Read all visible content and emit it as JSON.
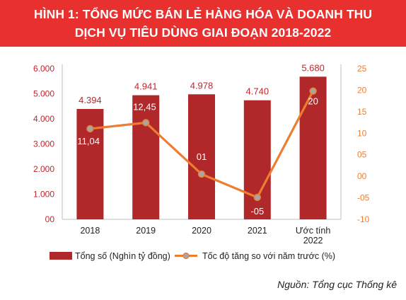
{
  "title": {
    "line1": "HÌNH 1: TỔNG MỨC BÁN LẺ HÀNG HÓA VÀ DOANH THU",
    "line2": "DỊCH VỤ TIÊU DÙNG GIAI ĐOẠN 2018-2022"
  },
  "source": "Nguồn: Tổng cục Thống kê",
  "colors": {
    "banner": "#e8302f",
    "bar": "#b1282a",
    "line": "#ed7d31",
    "marker": "#a6a6a6",
    "left_axis_text": "#c0262c",
    "right_axis_text": "#ed7d31"
  },
  "chart_data": {
    "type": "bar+line",
    "categories": [
      "2018",
      "2019",
      "2020",
      "2021",
      "Ước tính\n2022"
    ],
    "y_left": {
      "ticks": [
        "6.000",
        "5.000",
        "4.000",
        "3.000",
        "2.000",
        "1.000",
        "00"
      ],
      "tick_values": [
        6000,
        5000,
        4000,
        3000,
        2000,
        1000,
        0
      ],
      "range": [
        0,
        6000
      ]
    },
    "y_right": {
      "ticks": [
        "25",
        "20",
        "15",
        "10",
        "05",
        "00",
        "-05",
        "-10"
      ],
      "tick_values": [
        25,
        20,
        15,
        10,
        5,
        0,
        -5,
        -10
      ],
      "range": [
        -10,
        25
      ]
    },
    "series": [
      {
        "name": "Tổng số (Nghìn tỷ đồng)",
        "type": "bar",
        "axis": "left",
        "values": [
          4394,
          4941,
          4978,
          4740,
          5680
        ],
        "labels": [
          "4.394",
          "4.941",
          "4.978",
          "4.740",
          "5.680"
        ]
      },
      {
        "name": "Tốc độ tăng so với năm trước (%)",
        "type": "line",
        "axis": "right",
        "values": [
          11.04,
          12.45,
          0.5,
          -4.9,
          19.8
        ],
        "labels": [
          "11,04",
          "12,45",
          "01",
          "-05",
          "20"
        ]
      }
    ],
    "grid": false,
    "legend_position": "bottom"
  }
}
